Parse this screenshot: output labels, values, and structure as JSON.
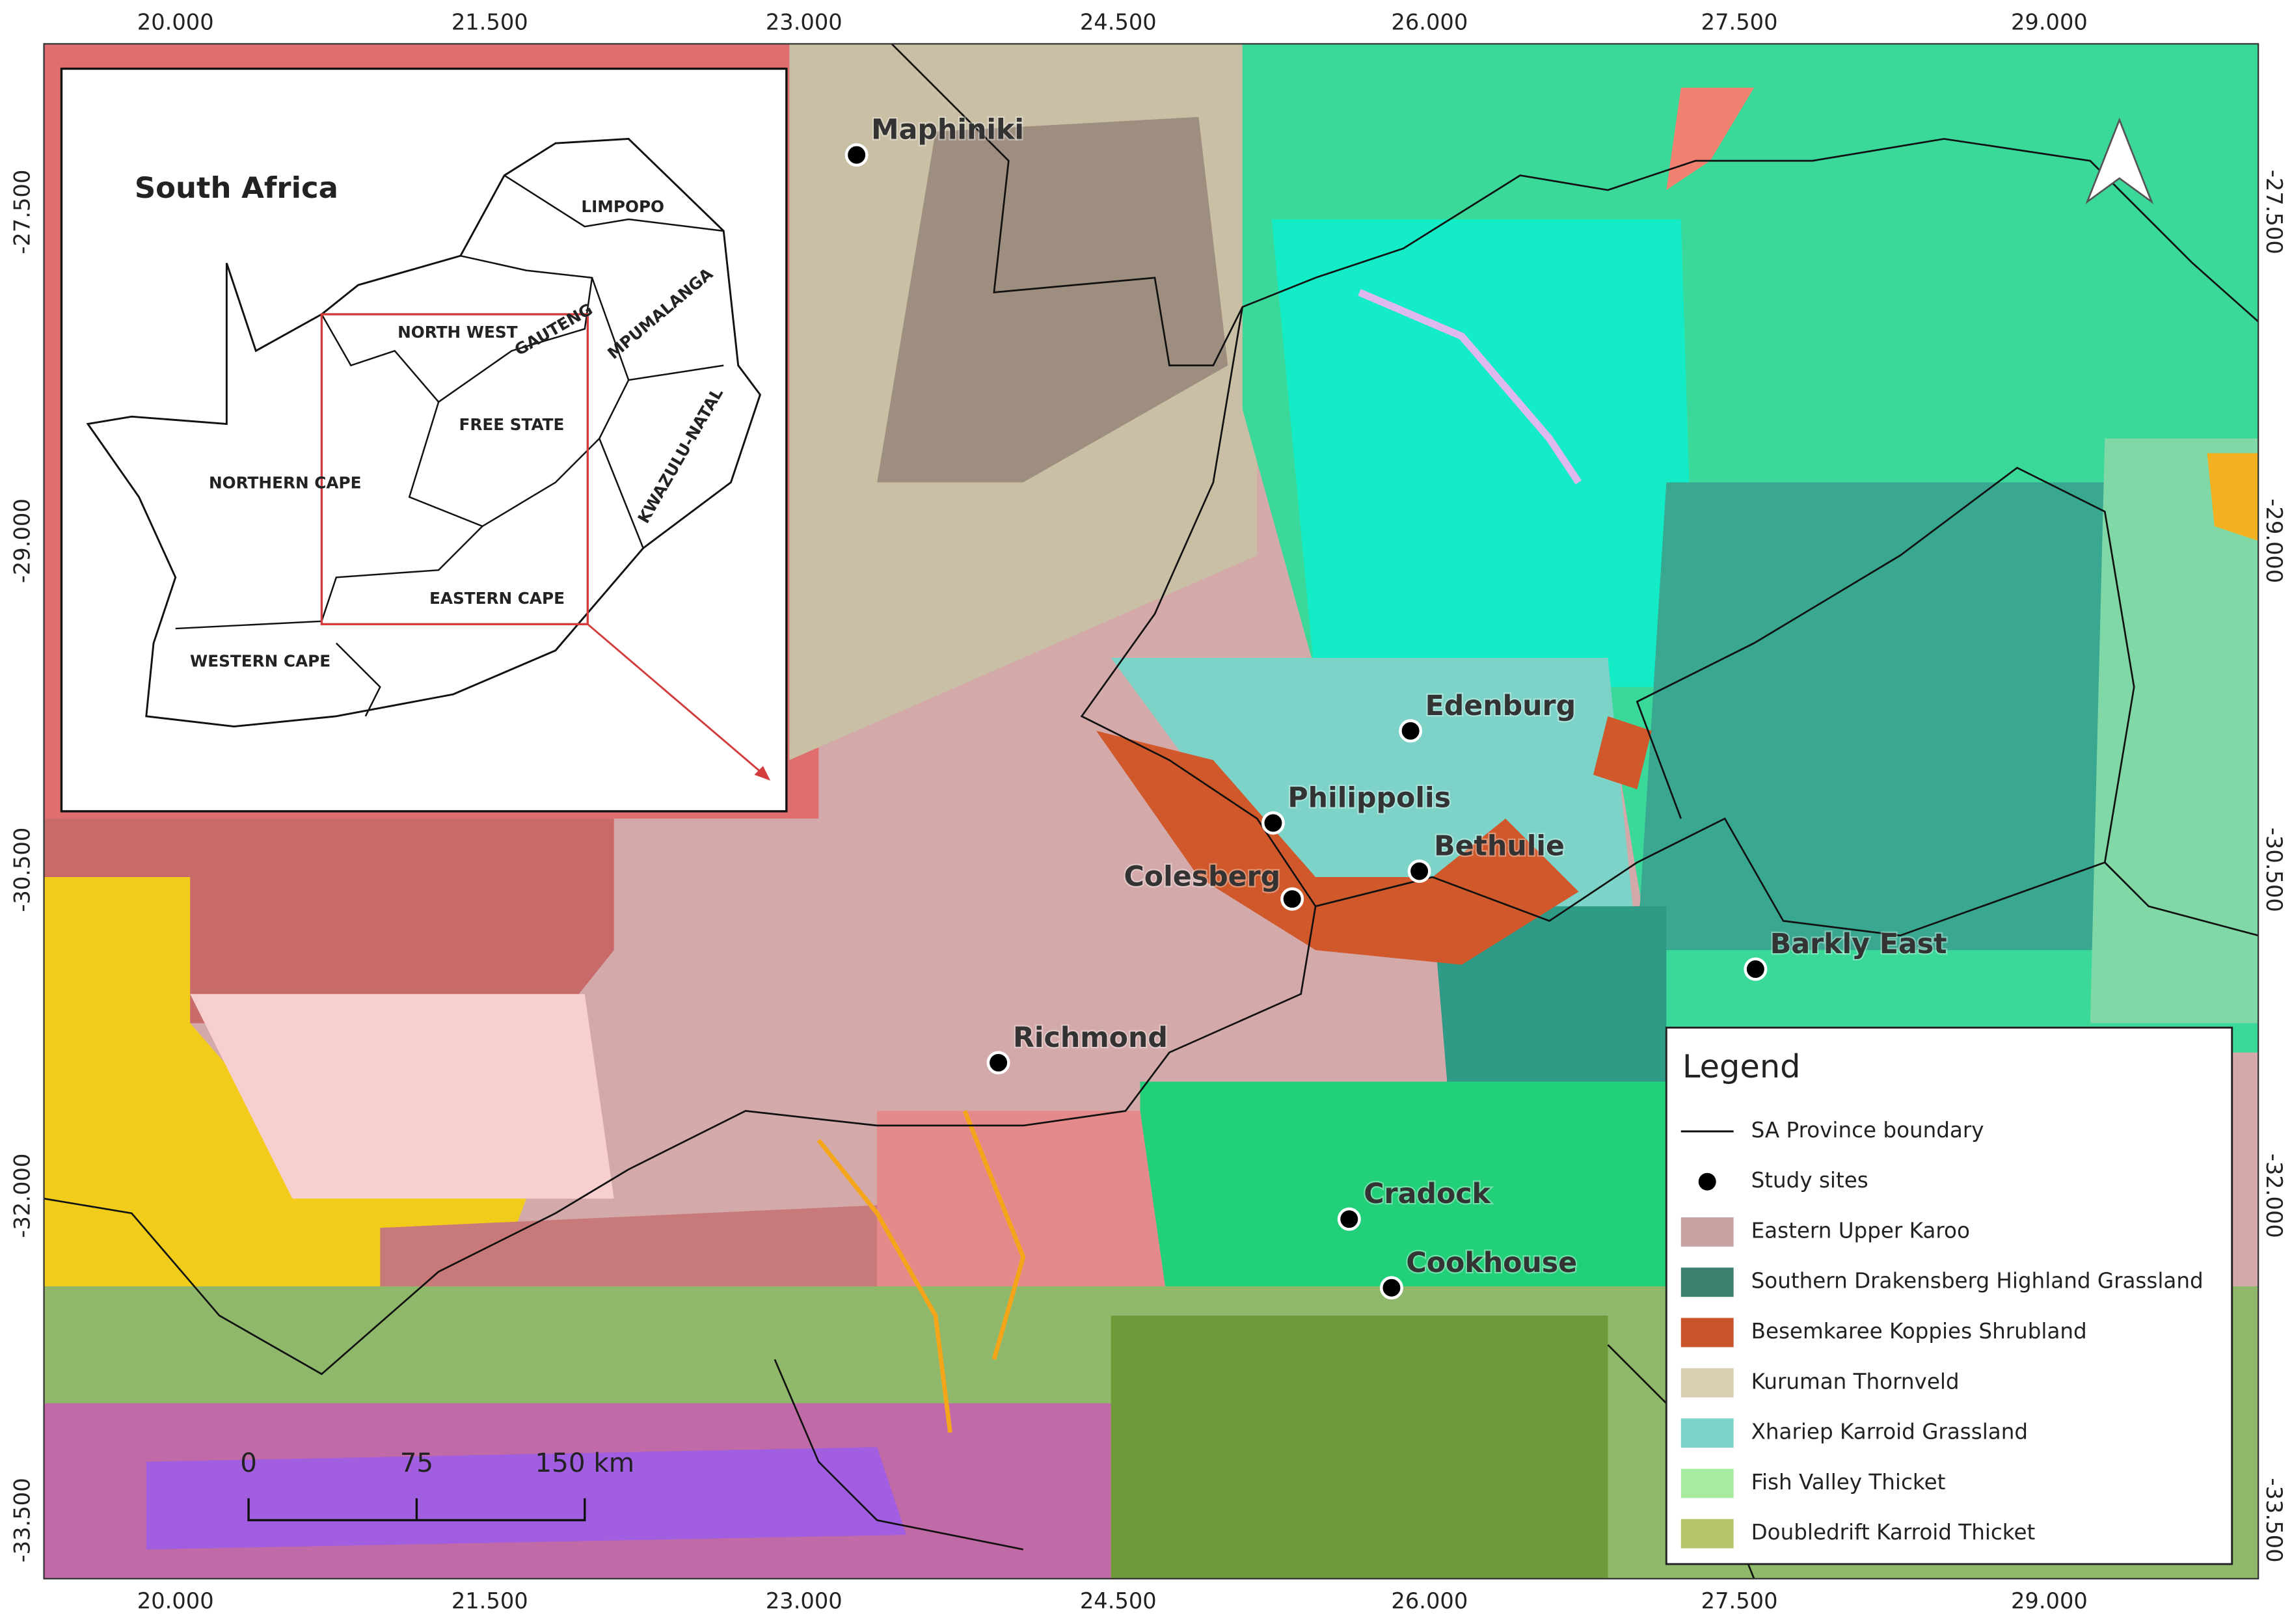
{
  "axes": {
    "top": [
      "20.000",
      "21.500",
      "23.000",
      "24.500",
      "26.000",
      "27.500",
      "29.000"
    ],
    "bottom": [
      "20.000",
      "21.500",
      "23.000",
      "24.500",
      "26.000",
      "27.500",
      "29.000"
    ],
    "left": [
      "-27.500",
      "-29.000",
      "-30.500",
      "-32.000",
      "-33.500"
    ],
    "right": [
      "-27.500",
      "-29.000",
      "-30.500",
      "-32.000",
      "-33.500"
    ]
  },
  "inset": {
    "title": "South Africa",
    "provinces": [
      "LIMPOPO",
      "NORTH WEST",
      "GAUTENG",
      "MPUMALANGA",
      "FREE STATE",
      "KWAZULU-NATAL",
      "NORTHERN CAPE",
      "EASTERN CAPE",
      "WESTERN CAPE"
    ]
  },
  "sites": [
    "Maphiniki",
    "Edenburg",
    "Philippolis",
    "Bethulie",
    "Colesberg",
    "Barkly East",
    "Richmond",
    "Cradock",
    "Cookhouse"
  ],
  "legend": {
    "title": "Legend",
    "items": [
      {
        "label": "SA Province boundary",
        "symbol": "line"
      },
      {
        "label": "Study sites",
        "symbol": "dot"
      },
      {
        "label": "Eastern Upper Karoo",
        "color": "#c9a3a3"
      },
      {
        "label": "Southern Drakensberg Highland Grassland",
        "color": "#3b7f6e"
      },
      {
        "label": "Besemkaree Koppies Shrubland",
        "color": "#c9542a"
      },
      {
        "label": "Kuruman Thornveld",
        "color": "#d9cfb0"
      },
      {
        "label": "Xhariep Karroid Grassland",
        "color": "#7dd3c8"
      },
      {
        "label": "Fish Valley Thicket",
        "color": "#a6eba0"
      },
      {
        "label": "Doubledrift Karroid Thicket",
        "color": "#b5c46a"
      }
    ]
  },
  "scale_bar": [
    "0",
    "75",
    "150 km"
  ]
}
